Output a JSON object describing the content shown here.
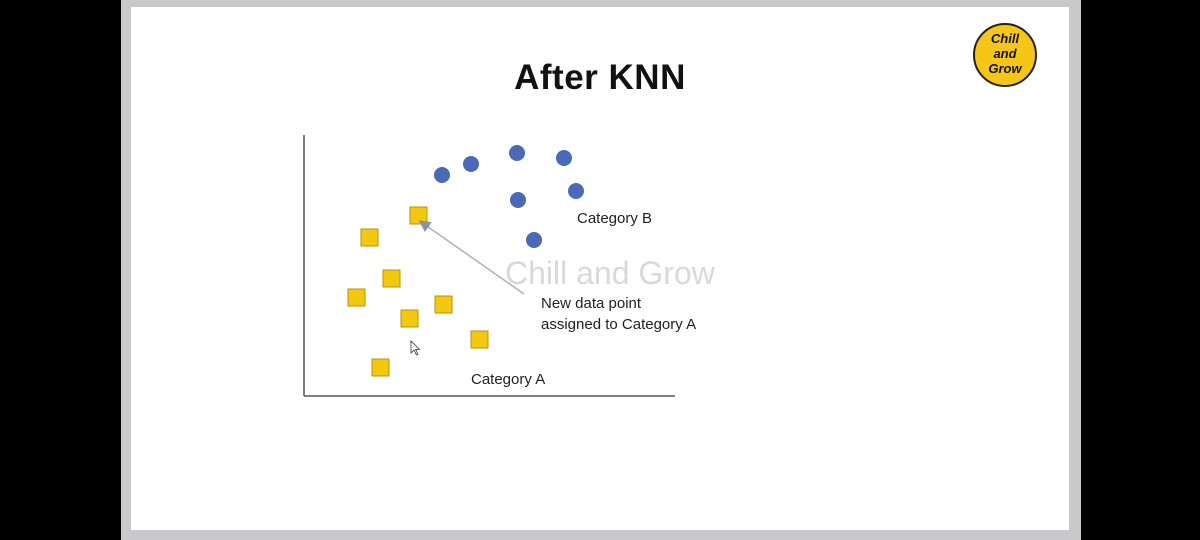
{
  "slide": {
    "title": "After KNN",
    "logo_text": [
      "Chill",
      "and",
      "Grow"
    ],
    "watermark": "Chill and Grow"
  },
  "diagram": {
    "category_b_label": "Category B",
    "category_a_label": "Category A",
    "annotation_line1": "New data point",
    "annotation_line2": "assigned to Category A"
  },
  "colors": {
    "category_a": "#f2c811",
    "category_b": "#4a6ab8",
    "axis": "#555555",
    "arrow": "#a9b1bf",
    "logo": "#f5c518"
  },
  "legend_symbols": {
    "category_a": "square",
    "category_b": "circle"
  }
}
